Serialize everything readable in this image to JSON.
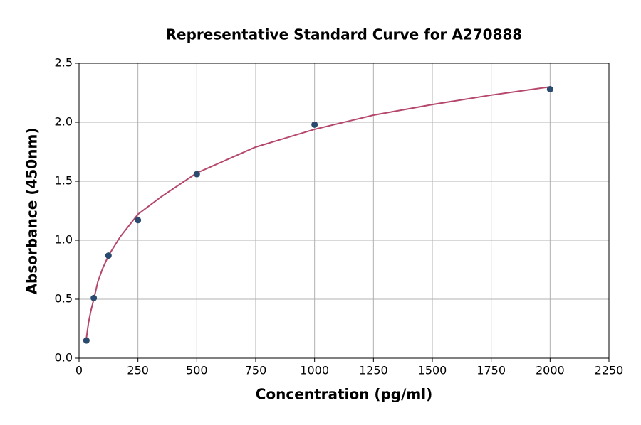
{
  "chart_data": {
    "type": "scatter",
    "title": "Representative Standard Curve for A270888",
    "x_label": "Concentration (pg/ml)",
    "y_label": "Absorbance (450nm)",
    "series": [
      {
        "mode": "line",
        "color": "#b5476a",
        "x": [
          31.25,
          40,
          50,
          62.5,
          80,
          100,
          125,
          175,
          250,
          350,
          500,
          750,
          1000,
          1250,
          1500,
          1750,
          2000
        ],
        "values": [
          0.17,
          0.3,
          0.4,
          0.5,
          0.65,
          0.76,
          0.87,
          1.03,
          1.22,
          1.37,
          1.57,
          1.79,
          1.94,
          2.06,
          2.15,
          2.23,
          2.3
        ]
      },
      {
        "mode": "markers",
        "color": "#2b4a6f",
        "x": [
          31.25,
          62.5,
          125,
          250,
          500,
          1000,
          2000
        ],
        "values": [
          0.15,
          0.51,
          0.87,
          1.17,
          1.56,
          1.98,
          2.28
        ]
      }
    ],
    "xlim": [
      0,
      2250
    ],
    "xticks": [
      0,
      250,
      500,
      750,
      1000,
      1250,
      1500,
      1750,
      2000,
      2250
    ],
    "ylim": [
      0,
      2.5
    ],
    "yticks": [
      {
        "value": 0,
        "label": "0.0"
      },
      0.5,
      {
        "value": 1,
        "label": "1.0"
      },
      1.5,
      {
        "value": 2,
        "label": "2.0"
      },
      2.5
    ],
    "grid": true
  }
}
